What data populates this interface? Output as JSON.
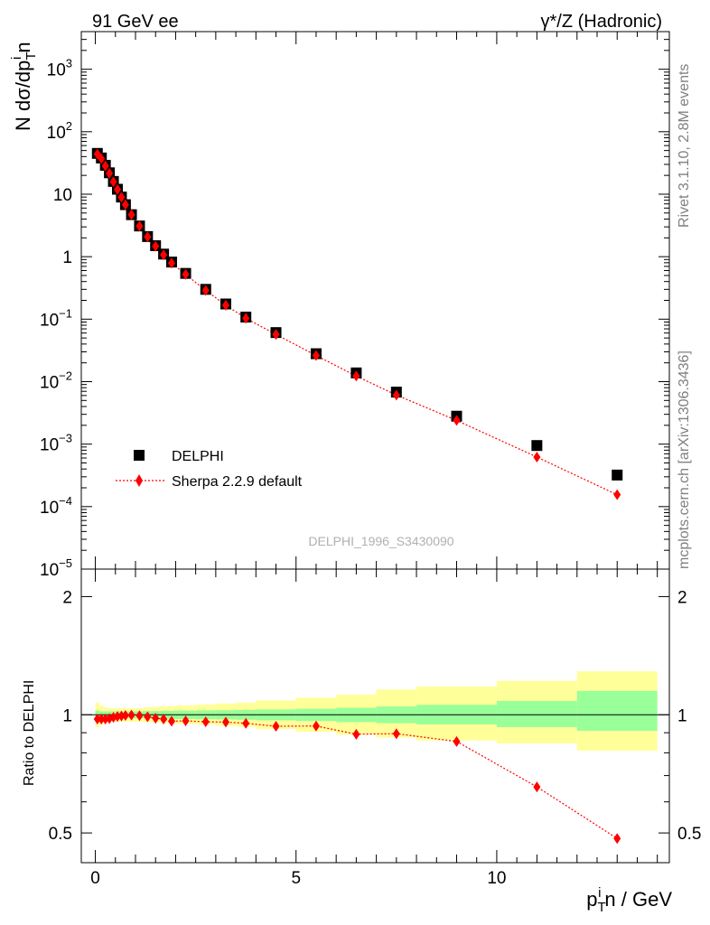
{
  "header": {
    "left_title": "91 GeV ee",
    "right_title": "γ*/Z (Hadronic)"
  },
  "side_labels": {
    "rivet": "Rivet 3.1.10,  2.8M events",
    "source": "mcplots.cern.ch [arXiv:1306.3436]"
  },
  "watermark": "DELPHI_1996_S3430090",
  "chart_data": [
    {
      "type": "scatter",
      "panel": "main",
      "ylabel": "N dσ/dp",
      "ylabel_sub": "T",
      "ylabel_sup": "i",
      "ylabel_tail": "n",
      "yscale": "log",
      "ylim": [
        1e-05,
        4000
      ],
      "xlim": [
        -0.35,
        14.3
      ],
      "y_ticks": [
        {
          "value": 1000,
          "base": "10",
          "exp": "3"
        },
        {
          "value": 100,
          "base": "10",
          "exp": "2"
        },
        {
          "value": 10,
          "base": "10",
          "exp": ""
        },
        {
          "value": 1,
          "base": "1",
          "exp": ""
        },
        {
          "value": 0.1,
          "base": "10",
          "exp": "−1"
        },
        {
          "value": 0.01,
          "base": "10",
          "exp": "−2"
        },
        {
          "value": 0.001,
          "base": "10",
          "exp": "−3"
        },
        {
          "value": 0.0001,
          "base": "10",
          "exp": "−4"
        },
        {
          "value": 1e-05,
          "base": "10",
          "exp": "−5"
        }
      ],
      "legend": [
        {
          "label": "DELPHI",
          "marker": "square",
          "color": "#000000"
        },
        {
          "label": "Sherpa 2.2.9 default",
          "marker": "diamond",
          "color": "#ff0000",
          "line": "dotted"
        }
      ],
      "x": [
        0.05,
        0.15,
        0.25,
        0.35,
        0.45,
        0.55,
        0.65,
        0.75,
        0.9,
        1.1,
        1.3,
        1.5,
        1.7,
        1.9,
        2.25,
        2.75,
        3.25,
        3.75,
        4.5,
        5.5,
        6.5,
        7.5,
        9.0,
        11.0,
        13.0
      ],
      "series": [
        {
          "name": "DELPHI",
          "values": [
            45,
            38,
            29,
            22,
            16,
            12,
            9.0,
            6.8,
            4.7,
            3.1,
            2.1,
            1.5,
            1.1,
            0.82,
            0.54,
            0.3,
            0.175,
            0.108,
            0.061,
            0.028,
            0.0138,
            0.0068,
            0.0028,
            0.00095,
            0.00032
          ]
        },
        {
          "name": "Sherpa 2.2.9 default",
          "values": [
            44,
            37,
            28.3,
            21.6,
            15.8,
            11.9,
            8.95,
            6.8,
            4.7,
            3.08,
            2.07,
            1.47,
            1.07,
            0.79,
            0.52,
            0.288,
            0.167,
            0.103,
            0.057,
            0.0262,
            0.0123,
            0.0061,
            0.0024,
            0.00062,
            0.000155
          ]
        }
      ]
    },
    {
      "type": "scatter",
      "panel": "ratio",
      "xlabel": "p",
      "xlabel_sub": "T",
      "xlabel_sup": "i",
      "xlabel_tail": "n / GeV",
      "ylabel": "Ratio to DELPHI",
      "yscale": "log",
      "ylim": [
        0.42,
        2.35
      ],
      "y_ticks": [
        {
          "value": 0.5,
          "label": "0.5"
        },
        {
          "value": 1,
          "label": "1"
        },
        {
          "value": 2,
          "label": "2"
        }
      ],
      "x_ticks": [
        {
          "value": 0,
          "label": "0"
        },
        {
          "value": 5,
          "label": "5"
        },
        {
          "value": 10,
          "label": "10"
        }
      ],
      "reference_line": 1,
      "bins": [
        [
          0.0,
          0.1
        ],
        [
          0.1,
          0.2
        ],
        [
          0.2,
          0.3
        ],
        [
          0.3,
          0.4
        ],
        [
          0.4,
          0.5
        ],
        [
          0.5,
          0.6
        ],
        [
          0.6,
          0.7
        ],
        [
          0.7,
          0.8
        ],
        [
          0.8,
          1.0
        ],
        [
          1.0,
          1.2
        ],
        [
          1.2,
          1.4
        ],
        [
          1.4,
          1.6
        ],
        [
          1.6,
          1.8
        ],
        [
          1.8,
          2.0
        ],
        [
          2.0,
          2.5
        ],
        [
          2.5,
          3.0
        ],
        [
          3.0,
          3.5
        ],
        [
          3.5,
          4.0
        ],
        [
          4.0,
          5.0
        ],
        [
          5.0,
          6.0
        ],
        [
          6.0,
          7.0
        ],
        [
          7.0,
          8.0
        ],
        [
          8.0,
          10.0
        ],
        [
          10.0,
          12.0
        ],
        [
          12.0,
          14.0
        ]
      ],
      "band_stat": [
        [
          0.975,
          1.025
        ],
        [
          0.98,
          1.02
        ],
        [
          0.98,
          1.02
        ],
        [
          0.98,
          1.02
        ],
        [
          0.98,
          1.02
        ],
        [
          0.98,
          1.02
        ],
        [
          0.98,
          1.02
        ],
        [
          0.98,
          1.02
        ],
        [
          0.98,
          1.02
        ],
        [
          0.98,
          1.02
        ],
        [
          0.978,
          1.022
        ],
        [
          0.978,
          1.022
        ],
        [
          0.976,
          1.024
        ],
        [
          0.976,
          1.024
        ],
        [
          0.975,
          1.025
        ],
        [
          0.974,
          1.026
        ],
        [
          0.973,
          1.027
        ],
        [
          0.971,
          1.029
        ],
        [
          0.968,
          1.032
        ],
        [
          0.964,
          1.036
        ],
        [
          0.958,
          1.042
        ],
        [
          0.952,
          1.05
        ],
        [
          0.945,
          1.06
        ],
        [
          0.93,
          1.085
        ],
        [
          0.91,
          1.15
        ]
      ],
      "band_total": [
        [
          0.93,
          1.075
        ],
        [
          0.945,
          1.055
        ],
        [
          0.955,
          1.045
        ],
        [
          0.96,
          1.04
        ],
        [
          0.96,
          1.04
        ],
        [
          0.96,
          1.04
        ],
        [
          0.96,
          1.04
        ],
        [
          0.96,
          1.04
        ],
        [
          0.96,
          1.04
        ],
        [
          0.96,
          1.04
        ],
        [
          0.958,
          1.045
        ],
        [
          0.956,
          1.048
        ],
        [
          0.954,
          1.05
        ],
        [
          0.952,
          1.052
        ],
        [
          0.948,
          1.056
        ],
        [
          0.944,
          1.062
        ],
        [
          0.938,
          1.068
        ],
        [
          0.932,
          1.074
        ],
        [
          0.92,
          1.088
        ],
        [
          0.905,
          1.105
        ],
        [
          0.89,
          1.125
        ],
        [
          0.875,
          1.16
        ],
        [
          0.86,
          1.18
        ],
        [
          0.845,
          1.22
        ],
        [
          0.81,
          1.29
        ]
      ],
      "series": [
        {
          "name": "Sherpa 2.2.9 default",
          "values": [
            0.975,
            0.975,
            0.975,
            0.978,
            0.985,
            0.99,
            0.993,
            0.996,
            0.998,
            0.995,
            0.988,
            0.98,
            0.975,
            0.963,
            0.965,
            0.96,
            0.958,
            0.951,
            0.935,
            0.936,
            0.892,
            0.895,
            0.855,
            0.655,
            0.484
          ]
        }
      ]
    }
  ]
}
